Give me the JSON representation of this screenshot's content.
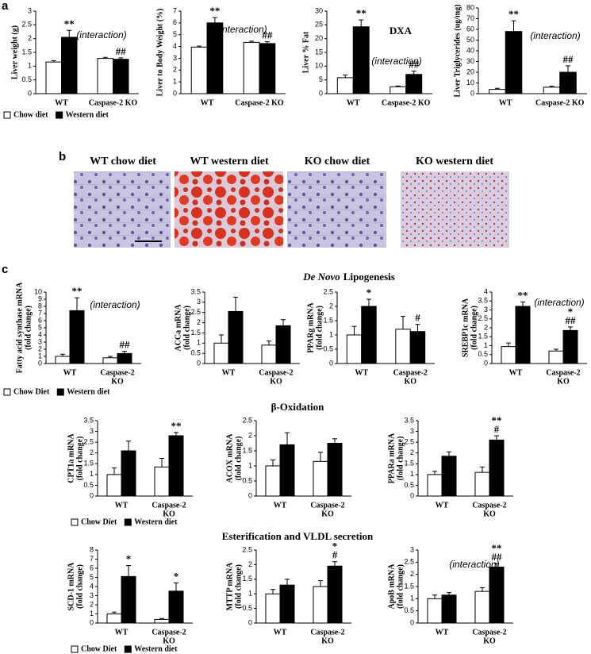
{
  "panel_labels": [
    "a",
    "b",
    "c"
  ],
  "images": [
    "WT chow diet",
    "WT western diet",
    "KO chow diet",
    "KO western diet"
  ],
  "sections": [
    {
      "italic": "De Novo",
      "text": "Lipogenesis"
    },
    "β-Oxidation",
    "Esterification and VLDL secretion"
  ],
  "chart_data": [
    {
      "type": "bar",
      "ylabel": [
        "Liver weight (g)"
      ],
      "ylim": [
        0,
        3
      ],
      "yticks": [
        0,
        0.5,
        1,
        1.5,
        2,
        2.5,
        3
      ],
      "note": "(interaction)",
      "legend": true,
      "categories": [
        [
          "WT"
        ],
        [
          "Caspase-2 KO"
        ]
      ],
      "series": [
        {
          "name": "Chow diet",
          "color": "#ffffff",
          "values": [
            1.15,
            1.28
          ],
          "errors": [
            0.05,
            0.04
          ],
          "annotations": [
            null,
            null
          ]
        },
        {
          "name": "Western diet",
          "color": "#000000",
          "values": [
            2.05,
            1.25
          ],
          "errors": [
            0.25,
            0.05
          ],
          "annotations": [
            [
              "**"
            ],
            [
              "##"
            ]
          ]
        }
      ]
    },
    {
      "type": "bar",
      "ylabel": [
        "Liver to Body Weight (%)"
      ],
      "ylim": [
        0,
        7
      ],
      "yticks": [
        0,
        1,
        2,
        3,
        4,
        5,
        6,
        7
      ],
      "note": "(interaction)",
      "categories": [
        [
          "WT"
        ],
        [
          "Caspase-2 KO"
        ]
      ],
      "series": [
        {
          "color": "#ffffff",
          "values": [
            3.95,
            4.35
          ],
          "errors": [
            0.08,
            0.1
          ],
          "annotations": [
            null,
            null
          ]
        },
        {
          "color": "#000000",
          "values": [
            6.0,
            4.25
          ],
          "errors": [
            0.45,
            0.15
          ],
          "annotations": [
            [
              "**"
            ],
            [
              "##"
            ]
          ]
        }
      ]
    },
    {
      "type": "bar",
      "title": "DXA",
      "ylabel": [
        "Liver % Fat"
      ],
      "ylim": [
        0,
        30
      ],
      "yticks": [
        0,
        5,
        10,
        15,
        20,
        25,
        30
      ],
      "note": "(interaction)",
      "categories": [
        [
          "WT"
        ],
        [
          "Caspase-2 KO"
        ]
      ],
      "series": [
        {
          "color": "#ffffff",
          "values": [
            5.8,
            2.5
          ],
          "errors": [
            1.0,
            0.3
          ],
          "annotations": [
            null,
            null
          ]
        },
        {
          "color": "#000000",
          "values": [
            24.3,
            7.0
          ],
          "errors": [
            2.5,
            1.2
          ],
          "annotations": [
            [
              "**"
            ],
            [
              "##"
            ]
          ]
        }
      ]
    },
    {
      "type": "bar",
      "ylabel": [
        "Liver Triglycerides (ug/mg)"
      ],
      "ylim": [
        0,
        80
      ],
      "yticks": [
        0,
        10,
        20,
        30,
        40,
        50,
        60,
        70,
        80
      ],
      "note": "(interaction)",
      "categories": [
        [
          "WT"
        ],
        [
          "Caspase-2 KO"
        ]
      ],
      "series": [
        {
          "color": "#ffffff",
          "values": [
            4,
            6
          ],
          "errors": [
            1,
            1
          ],
          "annotations": [
            null,
            null
          ]
        },
        {
          "color": "#000000",
          "values": [
            58,
            20
          ],
          "errors": [
            10,
            6
          ],
          "annotations": [
            [
              "**"
            ],
            [
              "##"
            ]
          ]
        }
      ]
    },
    {
      "type": "bar",
      "ylabel": [
        "Fatty acid synthase mRNA",
        "(fold change)"
      ],
      "ylim": [
        0,
        10
      ],
      "yticks": [
        0,
        1,
        2,
        3,
        4,
        5,
        6,
        7,
        8,
        9,
        10
      ],
      "note": "(interaction)",
      "legend": true,
      "categories": [
        [
          "WT"
        ],
        [
          "Caspase-2",
          "KO"
        ]
      ],
      "series": [
        {
          "name": "Chow Diet",
          "color": "#ffffff",
          "values": [
            1,
            0.8
          ],
          "errors": [
            0.3,
            0.2
          ],
          "annotations": [
            null,
            null
          ]
        },
        {
          "name": "Western diet",
          "color": "#000000",
          "values": [
            7.4,
            1.4
          ],
          "errors": [
            1.8,
            0.3
          ],
          "annotations": [
            [
              "**"
            ],
            [
              "##"
            ]
          ]
        }
      ]
    },
    {
      "type": "bar",
      "ylabel": [
        "ACCa mRNA",
        "(fold change)"
      ],
      "ylim": [
        0,
        3.5
      ],
      "yticks": [
        0,
        0.5,
        1,
        1.5,
        2,
        2.5,
        3,
        3.5
      ],
      "categories": [
        [
          "WT"
        ],
        [
          "Caspase-2",
          "KO"
        ]
      ],
      "series": [
        {
          "color": "#ffffff",
          "values": [
            1,
            0.9
          ],
          "errors": [
            0.4,
            0.2
          ],
          "annotations": [
            null,
            null
          ]
        },
        {
          "color": "#000000",
          "values": [
            2.55,
            1.85
          ],
          "errors": [
            0.7,
            0.3
          ],
          "annotations": [
            null,
            null
          ]
        }
      ]
    },
    {
      "type": "bar",
      "ylabel": [
        "PPARg mRNA",
        "(fold change)"
      ],
      "ylim": [
        0,
        2.5
      ],
      "yticks": [
        0,
        0.5,
        1,
        1.5,
        2,
        2.5
      ],
      "categories": [
        [
          "WT"
        ],
        [
          "Caspase-2",
          "KO"
        ]
      ],
      "series": [
        {
          "color": "#ffffff",
          "values": [
            1,
            1.2
          ],
          "errors": [
            0.3,
            0.45
          ],
          "annotations": [
            null,
            null
          ]
        },
        {
          "color": "#000000",
          "values": [
            2.0,
            1.12
          ],
          "errors": [
            0.25,
            0.25
          ],
          "annotations": [
            [
              "*"
            ],
            [
              "#"
            ]
          ]
        }
      ]
    },
    {
      "type": "bar",
      "ylabel": [
        "SREBP1c mRNA",
        "(fold change)"
      ],
      "ylim": [
        0,
        4
      ],
      "yticks": [
        0,
        0.5,
        1,
        1.5,
        2,
        2.5,
        3,
        3.5,
        4
      ],
      "note": "(interaction)",
      "categories": [
        [
          "WT"
        ],
        [
          "Caspase-2",
          "KO"
        ]
      ],
      "series": [
        {
          "color": "#ffffff",
          "values": [
            0.95,
            0.7
          ],
          "errors": [
            0.2,
            0.1
          ],
          "annotations": [
            null,
            null
          ]
        },
        {
          "color": "#000000",
          "values": [
            3.2,
            1.85
          ],
          "errors": [
            0.25,
            0.2
          ],
          "annotations": [
            [
              "**"
            ],
            [
              "*",
              "##"
            ]
          ]
        }
      ]
    },
    {
      "type": "bar",
      "ylabel": [
        "CPT1a mRNA",
        "(fold change)"
      ],
      "ylim": [
        0,
        3.5
      ],
      "yticks": [
        0,
        0.5,
        1,
        1.5,
        2,
        2.5,
        3,
        3.5
      ],
      "legend": true,
      "categories": [
        [
          "WT"
        ],
        [
          "Caspase-2",
          "KO"
        ]
      ],
      "series": [
        {
          "name": "Chow Diet",
          "color": "#ffffff",
          "values": [
            1,
            1.35
          ],
          "errors": [
            0.3,
            0.4
          ],
          "annotations": [
            null,
            null
          ]
        },
        {
          "name": "Western diet",
          "color": "#000000",
          "values": [
            2.1,
            2.8
          ],
          "errors": [
            0.45,
            0.15
          ],
          "annotations": [
            null,
            [
              "**"
            ]
          ]
        }
      ]
    },
    {
      "type": "bar",
      "ylabel": [
        "ACOX mRNA",
        "(fold change)"
      ],
      "ylim": [
        0,
        2.5
      ],
      "yticks": [
        0,
        0.5,
        1,
        1.5,
        2,
        2.5
      ],
      "categories": [
        [
          "WT"
        ],
        [
          "Caspase-2",
          "KO"
        ]
      ],
      "series": [
        {
          "color": "#ffffff",
          "values": [
            1,
            1.15
          ],
          "errors": [
            0.2,
            0.3
          ],
          "annotations": [
            null,
            null
          ]
        },
        {
          "color": "#000000",
          "values": [
            1.7,
            1.75
          ],
          "errors": [
            0.4,
            0.15
          ],
          "annotations": [
            null,
            null
          ]
        }
      ]
    },
    {
      "type": "bar",
      "ylabel": [
        "PPARa mRNA",
        "(fold change)"
      ],
      "ylim": [
        0,
        3.5
      ],
      "yticks": [
        0,
        0.5,
        1,
        1.5,
        2,
        2.5,
        3,
        3.5
      ],
      "categories": [
        [
          "WT"
        ],
        [
          "Caspase-2",
          "KO"
        ]
      ],
      "series": [
        {
          "color": "#ffffff",
          "values": [
            1,
            1.1
          ],
          "errors": [
            0.15,
            0.25
          ],
          "annotations": [
            null,
            null
          ]
        },
        {
          "color": "#000000",
          "values": [
            1.85,
            2.6
          ],
          "errors": [
            0.2,
            0.2
          ],
          "annotations": [
            null,
            [
              "**",
              "#"
            ]
          ]
        }
      ]
    },
    {
      "type": "bar",
      "ylabel": [
        "SCD-1 mRNA",
        "(fold change)"
      ],
      "ylim": [
        0,
        8
      ],
      "yticks": [
        0,
        1,
        2,
        3,
        4,
        5,
        6,
        7,
        8
      ],
      "legend": true,
      "categories": [
        [
          "WT"
        ],
        [
          "Caspase-2",
          "KO"
        ]
      ],
      "series": [
        {
          "name": "Chow Diet",
          "color": "#ffffff",
          "values": [
            1,
            0.4
          ],
          "errors": [
            0.2,
            0.1
          ],
          "annotations": [
            null,
            null
          ]
        },
        {
          "name": "Western diet",
          "color": "#000000",
          "values": [
            5.1,
            3.5
          ],
          "errors": [
            1.2,
            0.9
          ],
          "annotations": [
            [
              "*"
            ],
            [
              "*"
            ]
          ]
        }
      ]
    },
    {
      "type": "bar",
      "ylabel": [
        "MTTP mRNA",
        "(fold change)"
      ],
      "ylim": [
        0,
        2.5
      ],
      "yticks": [
        0,
        0.5,
        1,
        1.5,
        2,
        2.5
      ],
      "categories": [
        [
          "WT"
        ],
        [
          "Caspase-2",
          "KO"
        ]
      ],
      "series": [
        {
          "color": "#ffffff",
          "values": [
            1,
            1.25
          ],
          "errors": [
            0.15,
            0.2
          ],
          "annotations": [
            null,
            null
          ]
        },
        {
          "color": "#000000",
          "values": [
            1.3,
            1.95
          ],
          "errors": [
            0.2,
            0.15
          ],
          "annotations": [
            null,
            [
              "*",
              "#"
            ]
          ]
        }
      ]
    },
    {
      "type": "bar",
      "ylabel": [
        "ApoB mRNA",
        "(fold change)"
      ],
      "ylim": [
        0,
        3
      ],
      "yticks": [
        0,
        0.5,
        1,
        1.5,
        2,
        2.5,
        3
      ],
      "note": "(interaction)",
      "categories": [
        [
          "WT"
        ],
        [
          "Caspase-2",
          "KO"
        ]
      ],
      "series": [
        {
          "color": "#ffffff",
          "values": [
            1,
            1.3
          ],
          "errors": [
            0.15,
            0.15
          ],
          "annotations": [
            null,
            null
          ]
        },
        {
          "color": "#000000",
          "values": [
            1.15,
            2.3
          ],
          "errors": [
            0.1,
            0.15
          ],
          "annotations": [
            null,
            [
              "**",
              "##"
            ]
          ]
        }
      ]
    }
  ]
}
